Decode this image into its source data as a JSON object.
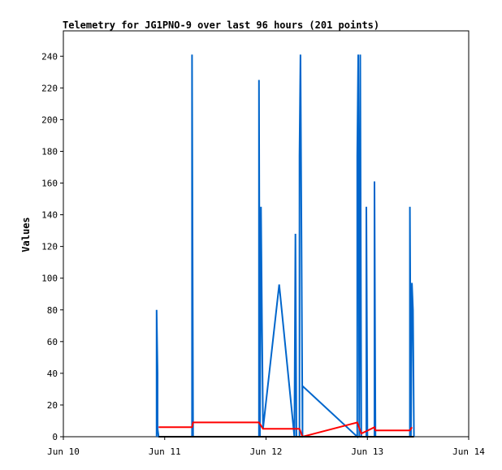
{
  "chart_data": {
    "type": "line",
    "title": "Telemetry for JG1PNO-9 over last 96 hours (201 points)",
    "ylabel": "Values",
    "xlabel": "",
    "x_tick_labels": [
      "Jun 10",
      "Jun 11",
      "Jun 12",
      "Jun 13",
      "Jun 14"
    ],
    "x_range_days": [
      10,
      14
    ],
    "y_ticks": [
      0,
      20,
      40,
      60,
      80,
      100,
      120,
      140,
      160,
      180,
      200,
      220,
      240
    ],
    "ylim": [
      0,
      256
    ],
    "grid": false,
    "legend": "none",
    "series": [
      {
        "color": "#0066cc",
        "points": [
          [
            10.92,
            0
          ],
          [
            10.92,
            80
          ],
          [
            10.93,
            40
          ],
          [
            10.93,
            5
          ],
          [
            10.94,
            0
          ],
          [
            11.27,
            0
          ],
          [
            11.27,
            241
          ],
          [
            11.28,
            0
          ],
          [
            11.93,
            0
          ],
          [
            11.93,
            225
          ],
          [
            11.94,
            0
          ],
          [
            11.95,
            145
          ],
          [
            11.96,
            73
          ],
          [
            11.97,
            5
          ],
          [
            12.13,
            96
          ],
          [
            12.28,
            0
          ],
          [
            12.29,
            128
          ],
          [
            12.3,
            0
          ],
          [
            12.33,
            0
          ],
          [
            12.33,
            177
          ],
          [
            12.34,
            241
          ],
          [
            12.35,
            121
          ],
          [
            12.36,
            0
          ],
          [
            12.36,
            32
          ],
          [
            12.9,
            0
          ],
          [
            12.9,
            177
          ],
          [
            12.91,
            241
          ],
          [
            12.92,
            0
          ],
          [
            12.93,
            241
          ],
          [
            12.94,
            0
          ],
          [
            12.99,
            0
          ],
          [
            12.99,
            145
          ],
          [
            13.0,
            0
          ],
          [
            13.07,
            0
          ],
          [
            13.07,
            161
          ],
          [
            13.08,
            0
          ],
          [
            13.42,
            0
          ],
          [
            13.42,
            145
          ],
          [
            13.43,
            0
          ],
          [
            13.44,
            97
          ],
          [
            13.45,
            80
          ],
          [
            13.46,
            0
          ]
        ]
      },
      {
        "color": "#ff0000",
        "points": [
          [
            10.94,
            6
          ],
          [
            11.27,
            6
          ],
          [
            11.28,
            9
          ],
          [
            11.93,
            9
          ],
          [
            11.97,
            5
          ],
          [
            12.33,
            5
          ],
          [
            12.36,
            0
          ],
          [
            12.9,
            9
          ],
          [
            12.94,
            2
          ],
          [
            13.07,
            6
          ],
          [
            13.08,
            4
          ],
          [
            13.42,
            4
          ],
          [
            13.44,
            6
          ]
        ]
      },
      {
        "color": "#000000",
        "points": [
          [
            10.94,
            0
          ],
          [
            13.46,
            0
          ]
        ]
      }
    ]
  }
}
